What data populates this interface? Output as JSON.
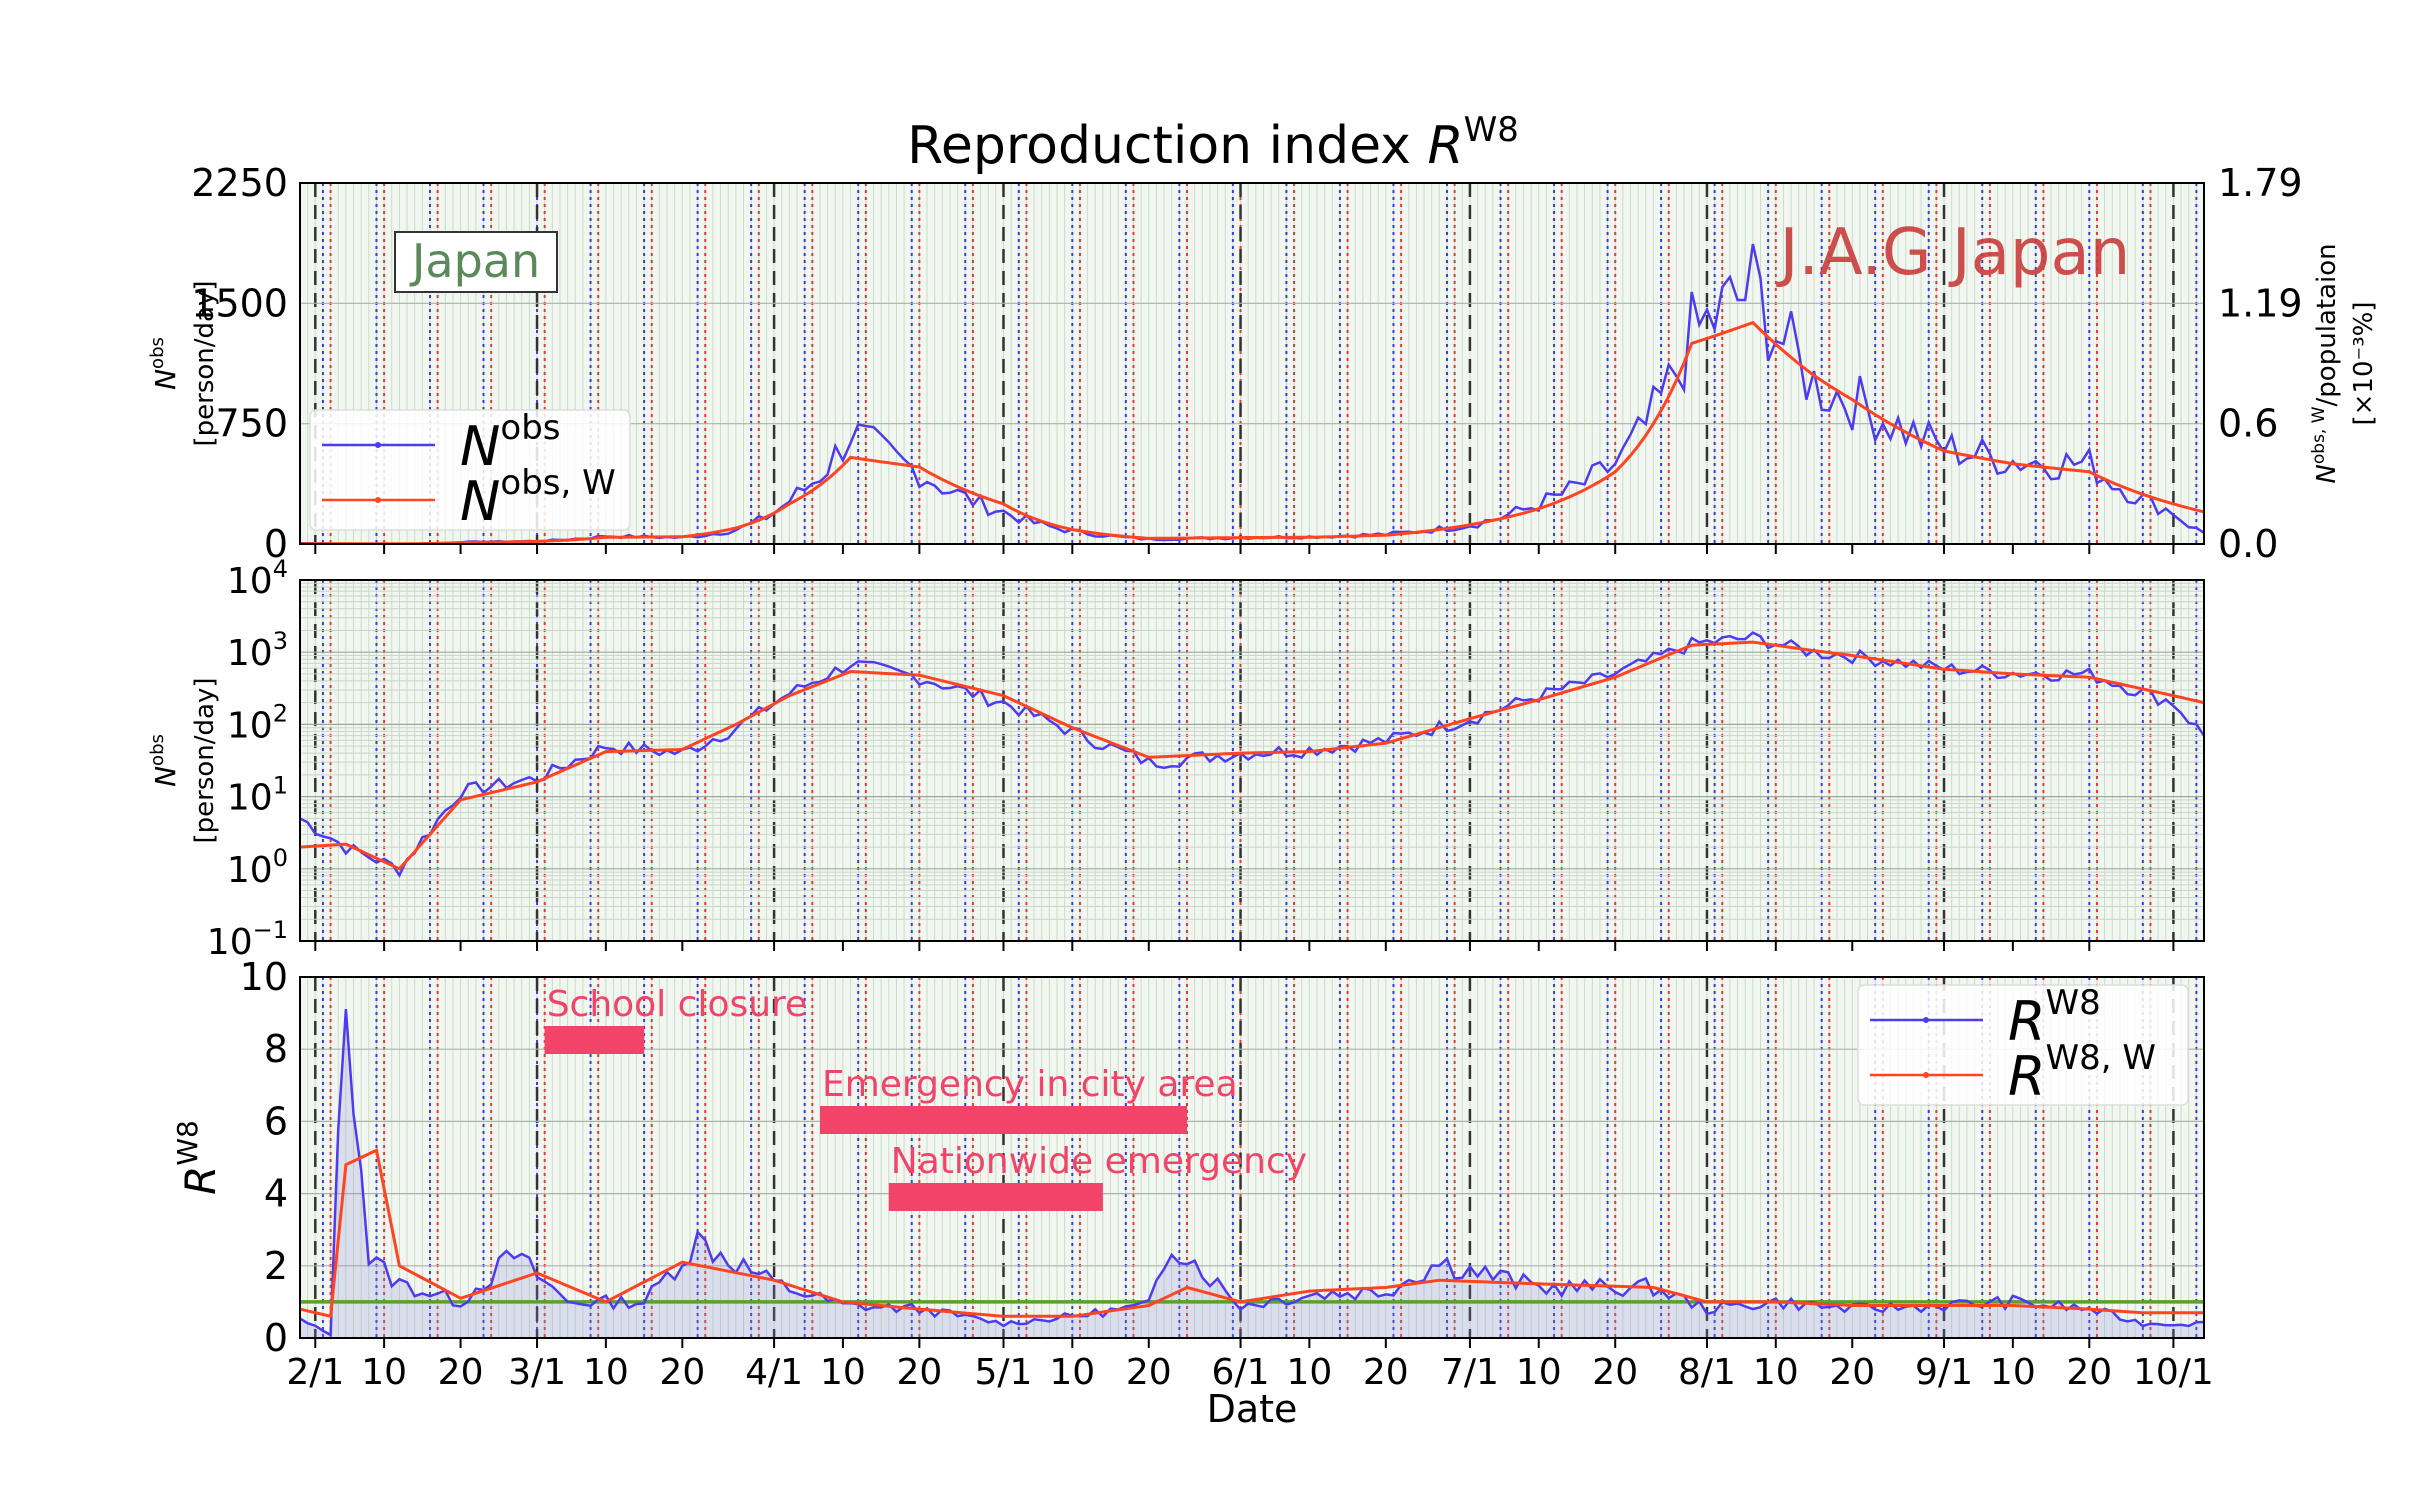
{
  "chart_data": {
    "type": "line",
    "title_text": "Reproduction index ",
    "title_var": "R",
    "title_sup": "W8",
    "region_label": "Japan",
    "watermark": "J.A.G Japan",
    "xlabel": "Date",
    "date_range": [
      "2020-01-30",
      "2020-10-05"
    ],
    "x_tick_labels": [
      "2/1",
      "10",
      "20",
      "3/1",
      "10",
      "20",
      "4/1",
      "10",
      "20",
      "5/1",
      "10",
      "20",
      "6/1",
      "10",
      "20",
      "7/1",
      "10",
      "20",
      "8/1",
      "10",
      "20",
      "9/1",
      "10",
      "20",
      "10/1"
    ],
    "x_tick_dates": [
      "2020-02-01",
      "2020-02-10",
      "2020-02-20",
      "2020-03-01",
      "2020-03-10",
      "2020-03-20",
      "2020-04-01",
      "2020-04-10",
      "2020-04-20",
      "2020-05-01",
      "2020-05-10",
      "2020-05-20",
      "2020-06-01",
      "2020-06-10",
      "2020-06-20",
      "2020-07-01",
      "2020-07-10",
      "2020-07-20",
      "2020-08-01",
      "2020-08-10",
      "2020-08-20",
      "2020-09-01",
      "2020-09-10",
      "2020-09-20",
      "2020-10-01"
    ],
    "colors": {
      "obs": "#4d3bf2",
      "weekly": "#ff4422",
      "threshold": "#5aa02c",
      "event_bar": "#f24468",
      "bg": "#f1f7f0",
      "region_label": "#5a8a5a",
      "watermark": "#c83c3c"
    },
    "panels": [
      {
        "name": "daily-linear",
        "ylabel_var": "N",
        "ylabel_sup": "obs",
        "ylabel_unit": "[person/day]",
        "ylim": [
          0,
          2250
        ],
        "y_ticks": [
          "0",
          "750",
          "1500",
          "2250"
        ],
        "y_tick_values": [
          0,
          750,
          1500,
          2250
        ],
        "right_ylabel_var": "N",
        "right_ylabel_sup": "obs, W",
        "right_ylabel_rest": "/populataion",
        "right_ylabel_unit": "[×10⁻³%]",
        "right_y_ticks": [
          "0.0",
          "0.6",
          "1.19",
          "1.79"
        ],
        "legend": [
          {
            "var": "N",
            "sup": "obs",
            "color": "#4d3bf2"
          },
          {
            "var": "N",
            "sup": "obs, W",
            "color": "#ff4422"
          }
        ]
      },
      {
        "name": "daily-log",
        "scale": "log",
        "ylabel_var": "N",
        "ylabel_sup": "obs",
        "ylabel_unit": "[person/day]",
        "ylim": [
          0.1,
          10000
        ],
        "y_ticks_base": [
          "10",
          "10",
          "10",
          "10",
          "10",
          "10"
        ],
        "y_ticks_exp": [
          "−1",
          "0",
          "1",
          "2",
          "3",
          "4"
        ]
      },
      {
        "name": "reproduction",
        "ylabel_var": "R",
        "ylabel_sup": "W8",
        "ylim": [
          0,
          10
        ],
        "y_ticks": [
          "0",
          "2",
          "4",
          "6",
          "8",
          "10"
        ],
        "y_tick_values": [
          0,
          2,
          4,
          6,
          8,
          10
        ],
        "threshold": 1,
        "legend": [
          {
            "var": "R",
            "sup": "W8",
            "color": "#4d3bf2"
          },
          {
            "var": "R",
            "sup": "W8, W",
            "color": "#ff4422"
          }
        ],
        "events": [
          {
            "label": "School closure",
            "start": "2020-03-02",
            "end": "2020-03-15"
          },
          {
            "label": "Emergency in city area",
            "start": "2020-04-07",
            "end": "2020-05-25"
          },
          {
            "label": "Nationwide emergency",
            "start": "2020-04-16",
            "end": "2020-05-14"
          }
        ]
      }
    ],
    "series_anchors": {
      "N_obs": [
        [
          "2020-01-30",
          5
        ],
        [
          "2020-02-05",
          2
        ],
        [
          "2020-02-12",
          1
        ],
        [
          "2020-02-20",
          12
        ],
        [
          "2020-03-01",
          18
        ],
        [
          "2020-03-10",
          50
        ],
        [
          "2020-03-20",
          40
        ],
        [
          "2020-03-27",
          90
        ],
        [
          "2020-04-03",
          270
        ],
        [
          "2020-04-11",
          700
        ],
        [
          "2020-04-20",
          450
        ],
        [
          "2020-05-01",
          200
        ],
        [
          "2020-05-10",
          80
        ],
        [
          "2020-05-20",
          30
        ],
        [
          "2020-06-01",
          40
        ],
        [
          "2020-06-10",
          45
        ],
        [
          "2020-06-20",
          60
        ],
        [
          "2020-07-01",
          120
        ],
        [
          "2020-07-10",
          250
        ],
        [
          "2020-07-20",
          500
        ],
        [
          "2020-07-30",
          1300
        ],
        [
          "2020-08-07",
          1600
        ],
        [
          "2020-08-15",
          1000
        ],
        [
          "2020-08-20",
          900
        ],
        [
          "2020-09-01",
          600
        ],
        [
          "2020-09-10",
          520
        ],
        [
          "2020-09-20",
          500
        ],
        [
          "2020-10-01",
          200
        ],
        [
          "2020-10-05",
          70
        ]
      ],
      "N_obs_W": [
        [
          "2020-01-30",
          2
        ],
        [
          "2020-02-05",
          2.2
        ],
        [
          "2020-02-12",
          1
        ],
        [
          "2020-02-20",
          9
        ],
        [
          "2020-03-01",
          16
        ],
        [
          "2020-03-10",
          42
        ],
        [
          "2020-03-20",
          45
        ],
        [
          "2020-03-27",
          100
        ],
        [
          "2020-04-03",
          250
        ],
        [
          "2020-04-11",
          540
        ],
        [
          "2020-04-20",
          480
        ],
        [
          "2020-05-01",
          250
        ],
        [
          "2020-05-10",
          90
        ],
        [
          "2020-05-20",
          35
        ],
        [
          "2020-06-01",
          40
        ],
        [
          "2020-06-10",
          42
        ],
        [
          "2020-06-20",
          55
        ],
        [
          "2020-07-01",
          120
        ],
        [
          "2020-07-10",
          220
        ],
        [
          "2020-07-20",
          450
        ],
        [
          "2020-07-30",
          1250
        ],
        [
          "2020-08-07",
          1380
        ],
        [
          "2020-08-15",
          1050
        ],
        [
          "2020-08-20",
          900
        ],
        [
          "2020-09-01",
          580
        ],
        [
          "2020-09-10",
          500
        ],
        [
          "2020-09-20",
          450
        ],
        [
          "2020-10-01",
          250
        ],
        [
          "2020-10-05",
          200
        ]
      ],
      "R_W8": [
        [
          "2020-01-30",
          0.5
        ],
        [
          "2020-02-03",
          0.1
        ],
        [
          "2020-02-05",
          10
        ],
        [
          "2020-02-08",
          2.2
        ],
        [
          "2020-02-12",
          1.5
        ],
        [
          "2020-02-20",
          1
        ],
        [
          "2020-02-27",
          2.3
        ],
        [
          "2020-03-05",
          1
        ],
        [
          "2020-03-15",
          1
        ],
        [
          "2020-03-22",
          2.7
        ],
        [
          "2020-04-01",
          1.5
        ],
        [
          "2020-04-10",
          0.9
        ],
        [
          "2020-04-20",
          0.8
        ],
        [
          "2020-05-01",
          0.4
        ],
        [
          "2020-05-10",
          0.6
        ],
        [
          "2020-05-20",
          0.9
        ],
        [
          "2020-05-23",
          2.7
        ],
        [
          "2020-06-01",
          0.9
        ],
        [
          "2020-06-10",
          1.2
        ],
        [
          "2020-06-20",
          1.3
        ],
        [
          "2020-06-27",
          2.1
        ],
        [
          "2020-07-10",
          1.4
        ],
        [
          "2020-07-25",
          1.4
        ],
        [
          "2020-08-01",
          0.8
        ],
        [
          "2020-08-10",
          1
        ],
        [
          "2020-08-20",
          0.8
        ],
        [
          "2020-09-01",
          0.9
        ],
        [
          "2020-09-10",
          1
        ],
        [
          "2020-09-20",
          0.8
        ],
        [
          "2020-09-27",
          0.4
        ]
      ],
      "R_W8_W": [
        [
          "2020-01-30",
          0.8
        ],
        [
          "2020-02-03",
          0.6
        ],
        [
          "2020-02-05",
          4.8
        ],
        [
          "2020-02-09",
          5.2
        ],
        [
          "2020-02-12",
          2
        ],
        [
          "2020-02-20",
          1.1
        ],
        [
          "2020-03-01",
          1.8
        ],
        [
          "2020-03-10",
          1
        ],
        [
          "2020-03-20",
          2.1
        ],
        [
          "2020-04-01",
          1.6
        ],
        [
          "2020-04-10",
          1
        ],
        [
          "2020-04-20",
          0.8
        ],
        [
          "2020-05-01",
          0.6
        ],
        [
          "2020-05-10",
          0.6
        ],
        [
          "2020-05-20",
          0.9
        ],
        [
          "2020-05-25",
          1.4
        ],
        [
          "2020-06-01",
          1
        ],
        [
          "2020-06-10",
          1.3
        ],
        [
          "2020-06-20",
          1.4
        ],
        [
          "2020-06-27",
          1.6
        ],
        [
          "2020-07-10",
          1.5
        ],
        [
          "2020-07-25",
          1.4
        ],
        [
          "2020-08-01",
          1
        ],
        [
          "2020-08-10",
          1
        ],
        [
          "2020-08-20",
          0.9
        ],
        [
          "2020-09-01",
          0.9
        ],
        [
          "2020-09-10",
          0.9
        ],
        [
          "2020-09-20",
          0.8
        ],
        [
          "2020-09-27",
          0.7
        ]
      ]
    }
  }
}
